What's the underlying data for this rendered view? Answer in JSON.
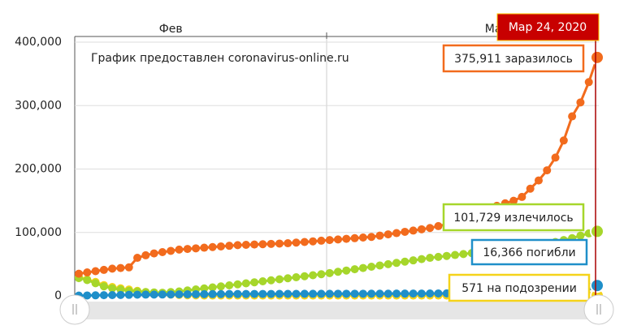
{
  "chart_data": {
    "type": "line",
    "annotation": "График предоставлен coronavirus-online.ru",
    "tooltip_title": "Мар 24, 2020",
    "categories": [
      null,
      null,
      null,
      null,
      null,
      null,
      null,
      null,
      null,
      null,
      null,
      "Фев",
      null,
      null,
      null,
      null,
      null,
      null,
      null,
      null,
      null,
      null,
      null,
      null,
      null,
      null,
      null,
      null,
      null,
      null,
      null,
      null,
      null,
      null,
      null,
      null,
      null,
      null,
      null,
      null,
      null,
      null,
      null,
      null,
      null,
      null,
      null,
      null,
      null,
      null,
      "Мар",
      null,
      null,
      null,
      null,
      null,
      null,
      null,
      null,
      null,
      null,
      null,
      null
    ],
    "ylim": [
      0,
      400000
    ],
    "yticks": [
      0,
      {
        "value": 100000,
        "label": "100,000"
      },
      {
        "value": 200000,
        "label": "200,000"
      },
      {
        "value": 300000,
        "label": "300,000"
      },
      {
        "value": 400000,
        "label": "400,000"
      }
    ],
    "grid": true,
    "series": [
      {
        "color": "#f5d31a",
        "values": [
          30000,
          26000,
          22000,
          17000,
          14000,
          12000,
          10000,
          8000,
          6000,
          4000,
          3000,
          2000,
          1500,
          1000,
          800,
          600,
          600,
          600,
          600,
          600,
          600,
          600,
          600,
          600,
          600,
          600,
          600,
          600,
          600,
          600,
          600,
          600,
          600,
          600,
          600,
          600,
          600,
          600,
          600,
          600,
          600,
          600,
          600,
          600,
          600,
          600,
          600,
          600,
          600,
          600,
          600,
          600,
          600,
          600,
          600,
          600,
          600,
          600,
          600,
          600,
          600,
          600,
          571
        ],
        "value_labels": [
          null,
          null,
          null,
          null,
          null,
          null,
          null,
          null,
          null,
          null,
          null,
          null,
          null,
          null,
          null,
          null,
          null,
          null,
          null,
          null,
          null,
          null,
          null,
          null,
          null,
          null,
          null,
          null,
          null,
          null,
          null,
          null,
          null,
          null,
          null,
          null,
          null,
          null,
          null,
          null,
          null,
          null,
          null,
          null,
          null,
          null,
          null,
          null,
          null,
          null,
          null,
          null,
          null,
          null,
          null,
          null,
          null,
          null,
          null,
          null,
          null,
          null,
          "571 на подозрении"
        ]
      },
      {
        "color": "#a6d62b",
        "values": [
          28000,
          25000,
          20000,
          15000,
          12000,
          10000,
          8000,
          7000,
          6000,
          5500,
          5000,
          6000,
          7000,
          8600,
          10200,
          11800,
          13400,
          15000,
          16600,
          18200,
          19800,
          21400,
          23000,
          24600,
          26200,
          27800,
          29400,
          31000,
          32600,
          34200,
          36000,
          38000,
          40000,
          42000,
          44000,
          46000,
          48000,
          50000,
          52000,
          54000,
          56000,
          58000,
          60000,
          61500,
          63000,
          64500,
          66000,
          67500,
          69000,
          70500,
          72000,
          73500,
          75000,
          77000,
          79000,
          81000,
          83000,
          85000,
          88000,
          91000,
          95000,
          98500,
          101729
        ],
        "value_labels": [
          null,
          null,
          null,
          null,
          null,
          null,
          null,
          null,
          null,
          null,
          null,
          null,
          null,
          null,
          null,
          null,
          null,
          null,
          null,
          null,
          null,
          null,
          null,
          null,
          null,
          null,
          null,
          null,
          null,
          null,
          null,
          null,
          null,
          null,
          null,
          null,
          null,
          null,
          null,
          null,
          null,
          null,
          null,
          null,
          null,
          null,
          null,
          null,
          null,
          null,
          null,
          null,
          null,
          null,
          null,
          null,
          null,
          null,
          null,
          null,
          null,
          null,
          "101,729 излечилось"
        ]
      },
      {
        "color": "#f26b1d",
        "values": [
          35000,
          37000,
          39000,
          41000,
          43000,
          44000,
          45000,
          60000,
          64000,
          67000,
          69000,
          71000,
          73000,
          74000,
          75000,
          76000,
          77000,
          78000,
          79000,
          80000,
          80500,
          81000,
          81500,
          82000,
          82500,
          83000,
          84000,
          85000,
          86000,
          87000,
          88000,
          89000,
          90000,
          91000,
          92000,
          93000,
          95000,
          97000,
          99000,
          101000,
          103000,
          105000,
          107000,
          110000,
          113000,
          116000,
          120000,
          125000,
          130000,
          136000,
          142000,
          146000,
          150000,
          156000,
          169000,
          182000,
          198000,
          218000,
          245000,
          283000,
          305000,
          337000,
          375911
        ],
        "value_labels": [
          null,
          null,
          null,
          null,
          null,
          null,
          null,
          null,
          null,
          null,
          null,
          null,
          null,
          null,
          null,
          null,
          null,
          null,
          null,
          null,
          null,
          null,
          null,
          null,
          null,
          null,
          null,
          null,
          null,
          null,
          null,
          null,
          null,
          null,
          null,
          null,
          null,
          null,
          null,
          null,
          null,
          null,
          null,
          null,
          null,
          null,
          null,
          null,
          null,
          null,
          null,
          null,
          null,
          null,
          null,
          null,
          null,
          null,
          null,
          null,
          null,
          null,
          "375,911 заразилось"
        ]
      },
      {
        "color": "#1f8fc9",
        "values": [
          500,
          700,
          900,
          1100,
          1300,
          1500,
          1700,
          1900,
          2000,
          2100,
          2200,
          2300,
          2400,
          2500,
          2600,
          2700,
          2800,
          2900,
          3000,
          3000,
          3000,
          3100,
          3100,
          3100,
          3200,
          3200,
          3200,
          3300,
          3300,
          3300,
          3300,
          3400,
          3400,
          3400,
          3400,
          3500,
          3500,
          3500,
          3600,
          3600,
          3700,
          3700,
          3800,
          3900,
          4000,
          4200,
          4400,
          4600,
          4900,
          5200,
          5500,
          5900,
          6400,
          7000,
          7600,
          8200,
          8900,
          9800,
          10800,
          11900,
          13100,
          14600,
          16366
        ],
        "value_labels": [
          null,
          null,
          null,
          null,
          null,
          null,
          null,
          null,
          null,
          null,
          null,
          null,
          null,
          null,
          null,
          null,
          null,
          null,
          null,
          null,
          null,
          null,
          null,
          null,
          null,
          null,
          null,
          null,
          null,
          null,
          null,
          null,
          null,
          null,
          null,
          null,
          null,
          null,
          null,
          null,
          null,
          null,
          null,
          null,
          null,
          null,
          null,
          null,
          null,
          null,
          null,
          null,
          null,
          null,
          null,
          null,
          null,
          null,
          null,
          null,
          null,
          null,
          "16,366 погибли"
        ]
      }
    ]
  }
}
